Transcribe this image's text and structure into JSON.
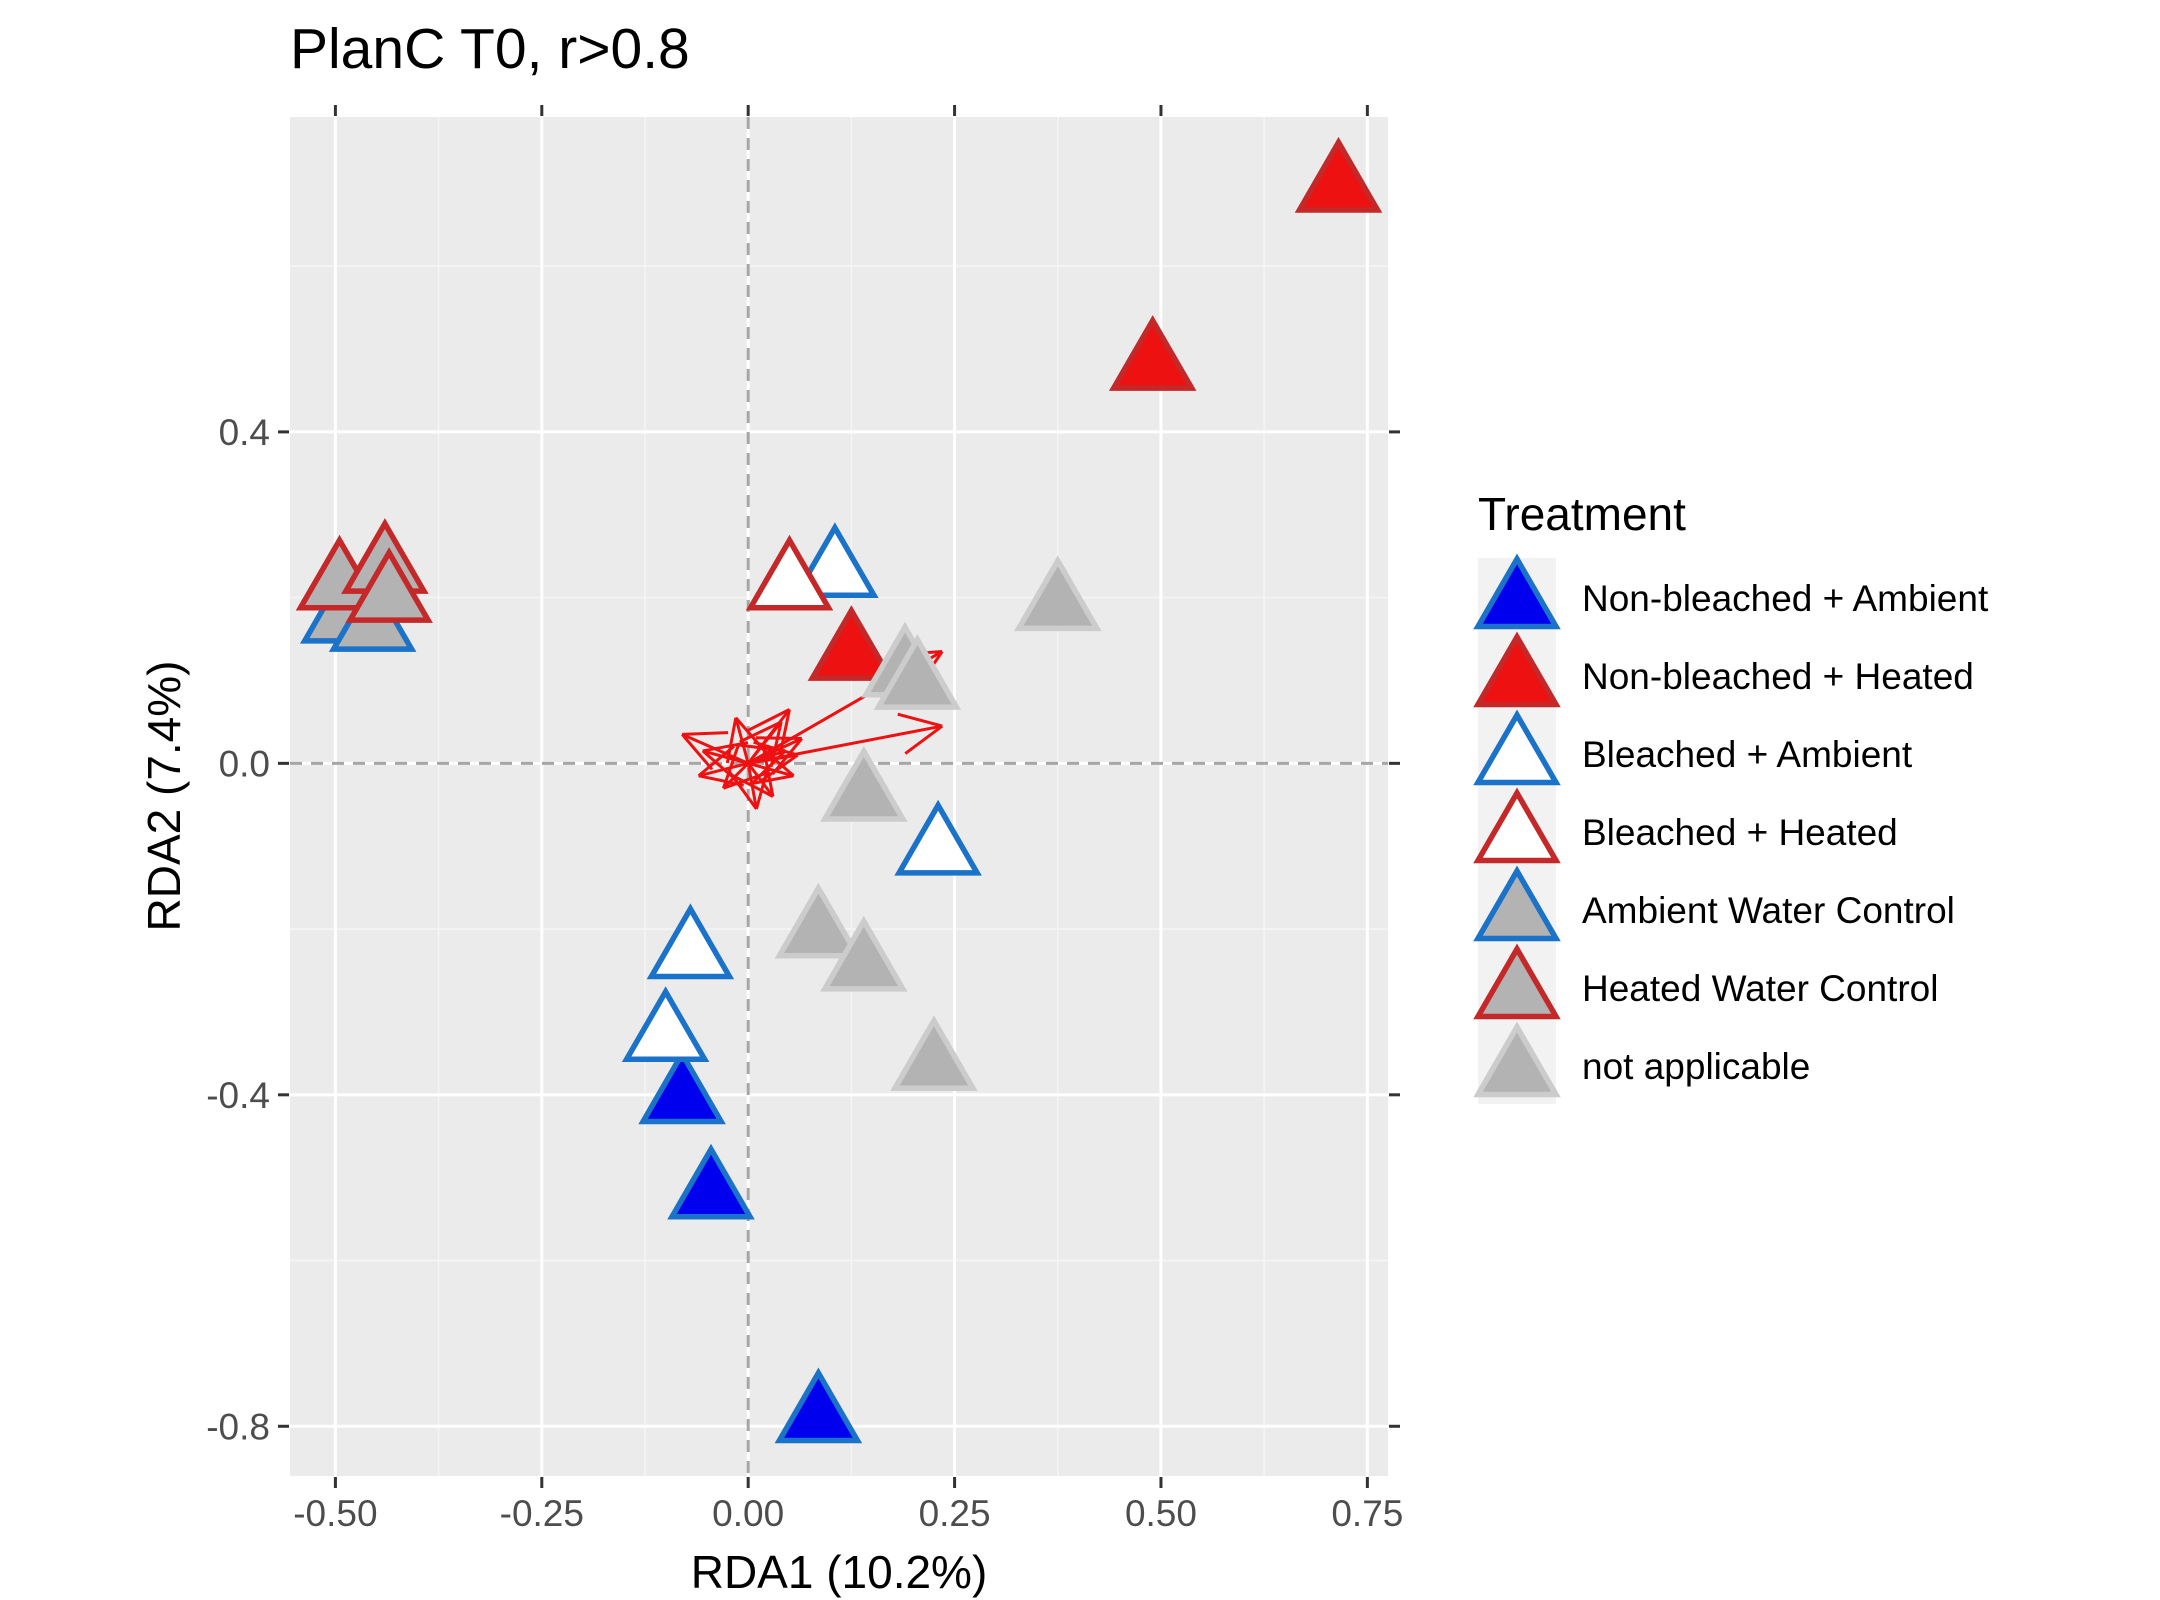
{
  "chart_data": {
    "type": "scatter",
    "title": "PlanC T0, r>0.8",
    "xlabel": "RDA1 (10.2%)",
    "ylabel": "RDA2 (7.4%)",
    "xlim": [
      -0.555,
      0.775
    ],
    "ylim": [
      -0.86,
      0.78
    ],
    "x_ticks": [
      -0.5,
      -0.25,
      0.0,
      0.25,
      0.5,
      0.75
    ],
    "x_tick_labels": [
      "-0.50",
      "-0.25",
      "0.00",
      "0.25",
      "0.50",
      "0.75"
    ],
    "y_ticks": [
      0.4,
      0.0,
      -0.4,
      -0.8
    ],
    "y_tick_labels": [
      "0.4",
      "0.0",
      "-0.4",
      "-0.8"
    ],
    "grid": true,
    "reference_lines": {
      "x": 0,
      "y": 0,
      "style": "dashed"
    },
    "legend": {
      "title": "Treatment",
      "placement": "right",
      "entries": [
        {
          "label": "Non-bleached + Ambient",
          "fill": "#0000ee",
          "stroke": "#1a72c9"
        },
        {
          "label": "Non-bleached + Heated",
          "fill": "#ee1111",
          "stroke": "#c42828"
        },
        {
          "label": "Bleached + Ambient",
          "fill": "#ffffff",
          "stroke": "#1a72c9"
        },
        {
          "label": "Bleached + Heated",
          "fill": "#ffffff",
          "stroke": "#c42828"
        },
        {
          "label": "Ambient Water Control",
          "fill": "#b3b3b3",
          "stroke": "#1a72c9"
        },
        {
          "label": "Heated Water Control",
          "fill": "#b3b3b3",
          "stroke": "#c42828"
        },
        {
          "label": "not applicable",
          "fill": "#b3b3b3",
          "stroke": "#cccccc"
        }
      ]
    },
    "series": [
      {
        "name": "Non-bleached + Ambient",
        "x": [
          0.085,
          -0.045,
          -0.08
        ],
        "y": [
          -0.79,
          -0.52,
          -0.405
        ]
      },
      {
        "name": "Non-bleached + Heated",
        "x": [
          0.715,
          0.49,
          0.125
        ],
        "y": [
          0.695,
          0.48,
          0.13
        ]
      },
      {
        "name": "Bleached + Ambient",
        "x": [
          0.105,
          0.23,
          -0.07,
          -0.1
        ],
        "y": [
          0.23,
          -0.105,
          -0.23,
          -0.33
        ]
      },
      {
        "name": "Bleached + Heated",
        "x": [
          0.05
        ],
        "y": [
          0.215
        ]
      },
      {
        "name": "Ambient Water Control",
        "x": [
          -0.49,
          -0.455
        ],
        "y": [
          0.175,
          0.165
        ]
      },
      {
        "name": "Heated Water Control",
        "x": [
          -0.495,
          -0.44,
          -0.435
        ],
        "y": [
          0.215,
          0.235,
          0.2
        ]
      },
      {
        "name": "not applicable",
        "x": [
          0.375,
          0.19,
          0.205,
          0.14,
          0.085,
          0.14,
          0.225
        ],
        "y": [
          0.19,
          0.11,
          0.095,
          -0.04,
          -0.205,
          -0.245,
          -0.365
        ]
      }
    ],
    "arrows": {
      "color": "#ee1111",
      "vectors": [
        {
          "x": 0.235,
          "y": 0.135
        },
        {
          "x": 0.235,
          "y": 0.045
        },
        {
          "x": 0.05,
          "y": 0.065
        },
        {
          "x": 0.04,
          "y": 0.05
        },
        {
          "x": 0.065,
          "y": 0.03
        },
        {
          "x": -0.08,
          "y": 0.035
        },
        {
          "x": 0.055,
          "y": -0.015
        },
        {
          "x": -0.06,
          "y": -0.015
        },
        {
          "x": -0.03,
          "y": -0.03
        },
        {
          "x": 0.03,
          "y": -0.04
        },
        {
          "x": -0.055,
          "y": 0.015
        },
        {
          "x": 0.045,
          "y": 0.015
        },
        {
          "x": 0.01,
          "y": -0.055
        },
        {
          "x": -0.015,
          "y": 0.055
        },
        {
          "x": 0.06,
          "y": 0.01
        }
      ]
    }
  }
}
